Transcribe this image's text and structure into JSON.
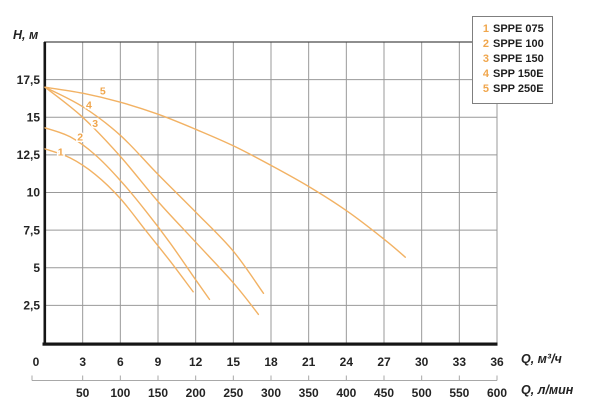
{
  "axis_labels": {
    "y": "H, м",
    "x_primary": "Q, м³/ч",
    "x_secondary": "Q, л/мин"
  },
  "legend": {
    "items": [
      {
        "num": "1",
        "label": "SPPE 075"
      },
      {
        "num": "2",
        "label": "SPPE 100"
      },
      {
        "num": "3",
        "label": "SPPE 150"
      },
      {
        "num": "4",
        "label": "SPP 150E"
      },
      {
        "num": "5",
        "label": "SPP 250E"
      }
    ]
  },
  "chart_data": {
    "type": "line",
    "title": "",
    "xlabel": "Q, м³/ч",
    "xlabel_secondary": "Q, л/мин",
    "ylabel": "H, м",
    "xlim": [
      0,
      36
    ],
    "ylim": [
      0,
      20
    ],
    "grid": true,
    "legend_position": "top-right",
    "x_ticks": [
      {
        "v": 0,
        "label": "0"
      },
      {
        "v": 3,
        "label": "3"
      },
      {
        "v": 6,
        "label": "6"
      },
      {
        "v": 9,
        "label": "9"
      },
      {
        "v": 12,
        "label": "12"
      },
      {
        "v": 15,
        "label": "15"
      },
      {
        "v": 18,
        "label": "18"
      },
      {
        "v": 21,
        "label": "21"
      },
      {
        "v": 24,
        "label": "24"
      },
      {
        "v": 27,
        "label": "27"
      },
      {
        "v": 30,
        "label": "30"
      },
      {
        "v": 33,
        "label": "33"
      },
      {
        "v": 36,
        "label": "36"
      }
    ],
    "x_ticks_lmin": [
      {
        "v": 3,
        "label": "50"
      },
      {
        "v": 6,
        "label": "100"
      },
      {
        "v": 9,
        "label": "150"
      },
      {
        "v": 12,
        "label": "200"
      },
      {
        "v": 15,
        "label": "250"
      },
      {
        "v": 18,
        "label": "300"
      },
      {
        "v": 21,
        "label": "350"
      },
      {
        "v": 24,
        "label": "400"
      },
      {
        "v": 27,
        "label": "450"
      },
      {
        "v": 30,
        "label": "500"
      },
      {
        "v": 33,
        "label": "550"
      },
      {
        "v": 36,
        "label": "600"
      }
    ],
    "y_ticks": [
      {
        "v": 2.5,
        "label": "2,5"
      },
      {
        "v": 5,
        "label": "5"
      },
      {
        "v": 7.5,
        "label": "7,5"
      },
      {
        "v": 10,
        "label": "10"
      },
      {
        "v": 12.5,
        "label": "12,5"
      },
      {
        "v": 15,
        "label": "15"
      },
      {
        "v": 17.5,
        "label": "17,5"
      }
    ],
    "series": [
      {
        "name": "SPPE 075",
        "curve_number": "1",
        "label_pos": {
          "q": 1.25,
          "h": 12.7
        },
        "points": [
          [
            0,
            12.9
          ],
          [
            2,
            12.3
          ],
          [
            4,
            11.2
          ],
          [
            6,
            9.6
          ],
          [
            8,
            7.5
          ],
          [
            10,
            5.4
          ],
          [
            11.8,
            3.4
          ]
        ]
      },
      {
        "name": "SPPE 100",
        "curve_number": "2",
        "label_pos": {
          "q": 2.8,
          "h": 13.7
        },
        "points": [
          [
            0,
            14.3
          ],
          [
            2,
            13.7
          ],
          [
            4,
            12.5
          ],
          [
            6,
            10.8
          ],
          [
            8,
            8.8
          ],
          [
            10,
            6.6
          ],
          [
            12,
            4.2
          ],
          [
            13.1,
            2.9
          ]
        ]
      },
      {
        "name": "SPPE 150",
        "curve_number": "3",
        "label_pos": {
          "q": 4.0,
          "h": 14.6
        },
        "points": [
          [
            0,
            17
          ],
          [
            3,
            15.0
          ],
          [
            6,
            12.4
          ],
          [
            9,
            9.4
          ],
          [
            12,
            6.7
          ],
          [
            15,
            4.0
          ],
          [
            17,
            1.9
          ]
        ]
      },
      {
        "name": "SPP 150E",
        "curve_number": "4",
        "label_pos": {
          "q": 3.5,
          "h": 15.8
        },
        "points": [
          [
            0,
            17
          ],
          [
            3,
            15.7
          ],
          [
            6,
            13.8
          ],
          [
            9,
            11.2
          ],
          [
            12,
            8.7
          ],
          [
            15,
            6.1
          ],
          [
            17.4,
            3.3
          ]
        ]
      },
      {
        "name": "SPP 250E",
        "curve_number": "5",
        "label_pos": {
          "q": 4.6,
          "h": 16.75
        },
        "points": [
          [
            0,
            17
          ],
          [
            3,
            16.6
          ],
          [
            6,
            16.0
          ],
          [
            9,
            15.2
          ],
          [
            12,
            14.2
          ],
          [
            15,
            13.1
          ],
          [
            18,
            11.8
          ],
          [
            21,
            10.4
          ],
          [
            24,
            8.8
          ],
          [
            27,
            6.9
          ],
          [
            28.7,
            5.7
          ]
        ]
      }
    ],
    "colors": {
      "curve": "#F2B264",
      "curve_number": "#F0A64C",
      "grid": "#999999",
      "frame_top": "#4a4a4a",
      "axis": "#151515",
      "text": "#242424",
      "ruler": "#a8a8a8",
      "legend_border": "#7f7f7f",
      "background": "#ffffff"
    }
  }
}
